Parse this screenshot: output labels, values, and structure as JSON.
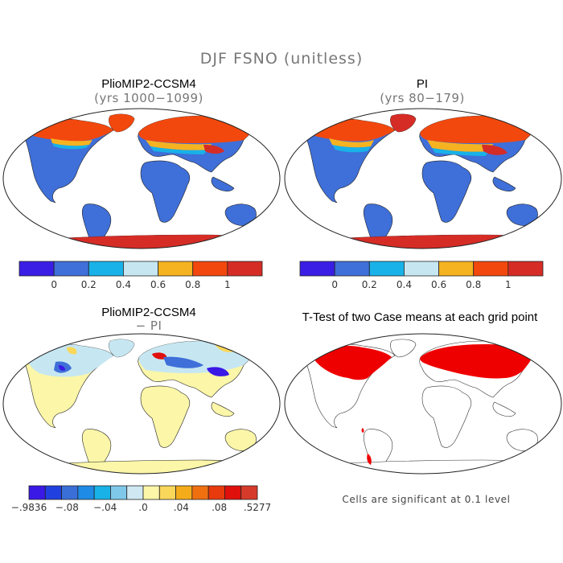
{
  "figure": {
    "title": "DJF FSNO (unitless)"
  },
  "panels": {
    "top_left": {
      "title": "PlioMIP2-CCSM4",
      "subtitle": "(yrs 1000−1099)"
    },
    "top_right": {
      "title": "PI",
      "subtitle": "(yrs 80−179)"
    },
    "bottom_left": {
      "title": "PlioMIP2-CCSM4",
      "subtitle": "− PI"
    },
    "bottom_right": {
      "title": "T-Test of two Case means at each grid point",
      "note": "Cells are significant at 0.1 level"
    }
  },
  "colorbars": {
    "absolute": {
      "colors": [
        "#3a1ee6",
        "#3f6fd8",
        "#18b2e8",
        "#c6e7f2",
        "#f5b321",
        "#f2480e",
        "#d62c26"
      ],
      "labels": [
        "0",
        "0.2",
        "0.4",
        "0.6",
        "0.8",
        "1"
      ]
    },
    "difference": {
      "colors": [
        "#3a18e6",
        "#2040e0",
        "#3a6fd8",
        "#1e8be6",
        "#18b2e8",
        "#7fc8ea",
        "#cfe8f2",
        "#fbf6a8",
        "#f9d75a",
        "#f5ac1a",
        "#f07010",
        "#e83a0c",
        "#e0100c",
        "#d63a2a"
      ],
      "labels": [
        "−.9836",
        "−.08",
        "−.04",
        ".0",
        ".04",
        ".08",
        ".5277"
      ]
    }
  },
  "colors": {
    "land_snow_free": "#3f6fd8",
    "snow_full": "#f2480e",
    "antarctica": "#d62c26",
    "diff_zero": "#fbf6a8",
    "diff_negative": "#c6e7f2",
    "significant": "#ee0000"
  }
}
